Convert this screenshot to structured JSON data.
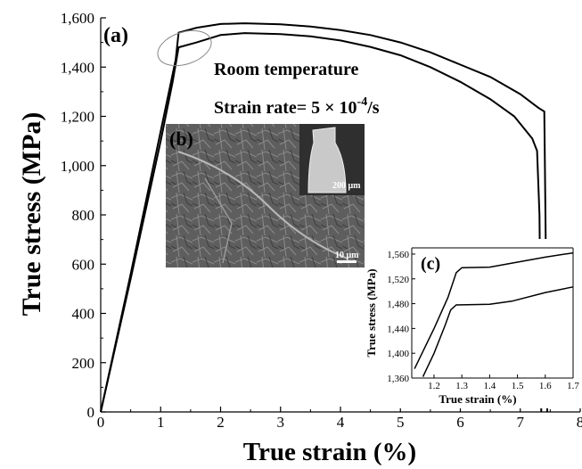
{
  "chart_data": [
    {
      "type": "line",
      "panel_label": "(a)",
      "xlabel": "True strain (%)",
      "ylabel": "True stress (MPa)",
      "xlim": [
        0,
        8
      ],
      "ylim": [
        0,
        1600
      ],
      "xticks": [
        0,
        1,
        2,
        3,
        4,
        5,
        6,
        7,
        8
      ],
      "xtick_labels": [
        "0",
        "1",
        "2",
        "3",
        "4",
        "5",
        "6",
        "7",
        "8"
      ],
      "yticks": [
        0,
        200,
        400,
        600,
        800,
        1000,
        1200,
        1400,
        1600
      ],
      "ytick_labels": [
        "0",
        "200",
        "400",
        "600",
        "800",
        "1,000",
        "1,200",
        "1,400",
        "1,600"
      ],
      "annotations": [
        "Room temperature",
        "Strain rate= 5 × 10",
        "-4",
        "/s"
      ],
      "series": [
        {
          "x": [
            0,
            0.5,
            1.0,
            1.25,
            1.3,
            1.6,
            2.0,
            2.4,
            3.0,
            3.5,
            4.0,
            4.5,
            5.0,
            5.5,
            6.0,
            6.5,
            7.0,
            7.3,
            7.4,
            7.42,
            7.45
          ],
          "y": [
            0,
            560,
            1140,
            1430,
            1540,
            1560,
            1575,
            1578,
            1574,
            1565,
            1550,
            1530,
            1500,
            1460,
            1410,
            1360,
            1290,
            1235,
            1220,
            800,
            0
          ]
        },
        {
          "x": [
            0,
            0.5,
            1.0,
            1.2,
            1.3,
            1.6,
            2.0,
            2.4,
            3.0,
            3.5,
            4.0,
            4.5,
            5.0,
            5.5,
            6.0,
            6.5,
            6.9,
            7.2,
            7.28,
            7.32,
            7.35
          ],
          "y": [
            0,
            540,
            1100,
            1340,
            1480,
            1500,
            1530,
            1538,
            1534,
            1525,
            1508,
            1482,
            1448,
            1400,
            1340,
            1270,
            1200,
            1110,
            1060,
            800,
            0
          ]
        }
      ]
    },
    {
      "type": "line",
      "panel_label": "(c)",
      "xlabel": "True strain (%)",
      "ylabel": "True stress (MPa)",
      "xlim": [
        1.12,
        1.7
      ],
      "ylim": [
        1360,
        1570
      ],
      "xticks": [
        1.2,
        1.3,
        1.4,
        1.5,
        1.6,
        1.7
      ],
      "xtick_labels": [
        "1.2",
        "1.3",
        "1.4",
        "1.5",
        "1.6",
        "1.7"
      ],
      "yticks": [
        1360,
        1400,
        1440,
        1480,
        1520,
        1560
      ],
      "ytick_labels": [
        "1,360",
        "1,400",
        "1,440",
        "1,480",
        "1,520",
        "1,560"
      ],
      "series": [
        {
          "x": [
            1.13,
            1.2,
            1.25,
            1.28,
            1.3,
            1.4,
            1.5,
            1.6,
            1.7
          ],
          "y": [
            1375,
            1440,
            1490,
            1530,
            1538,
            1539,
            1547,
            1555,
            1562
          ]
        },
        {
          "x": [
            1.16,
            1.2,
            1.24,
            1.26,
            1.28,
            1.4,
            1.48,
            1.6,
            1.7
          ],
          "y": [
            1362,
            1400,
            1445,
            1470,
            1478,
            1479,
            1484,
            1498,
            1507
          ]
        }
      ]
    }
  ],
  "inset_b": {
    "label": "(b)",
    "scale_bar": "10 μm",
    "sub_scale_bar": "200 μm"
  }
}
